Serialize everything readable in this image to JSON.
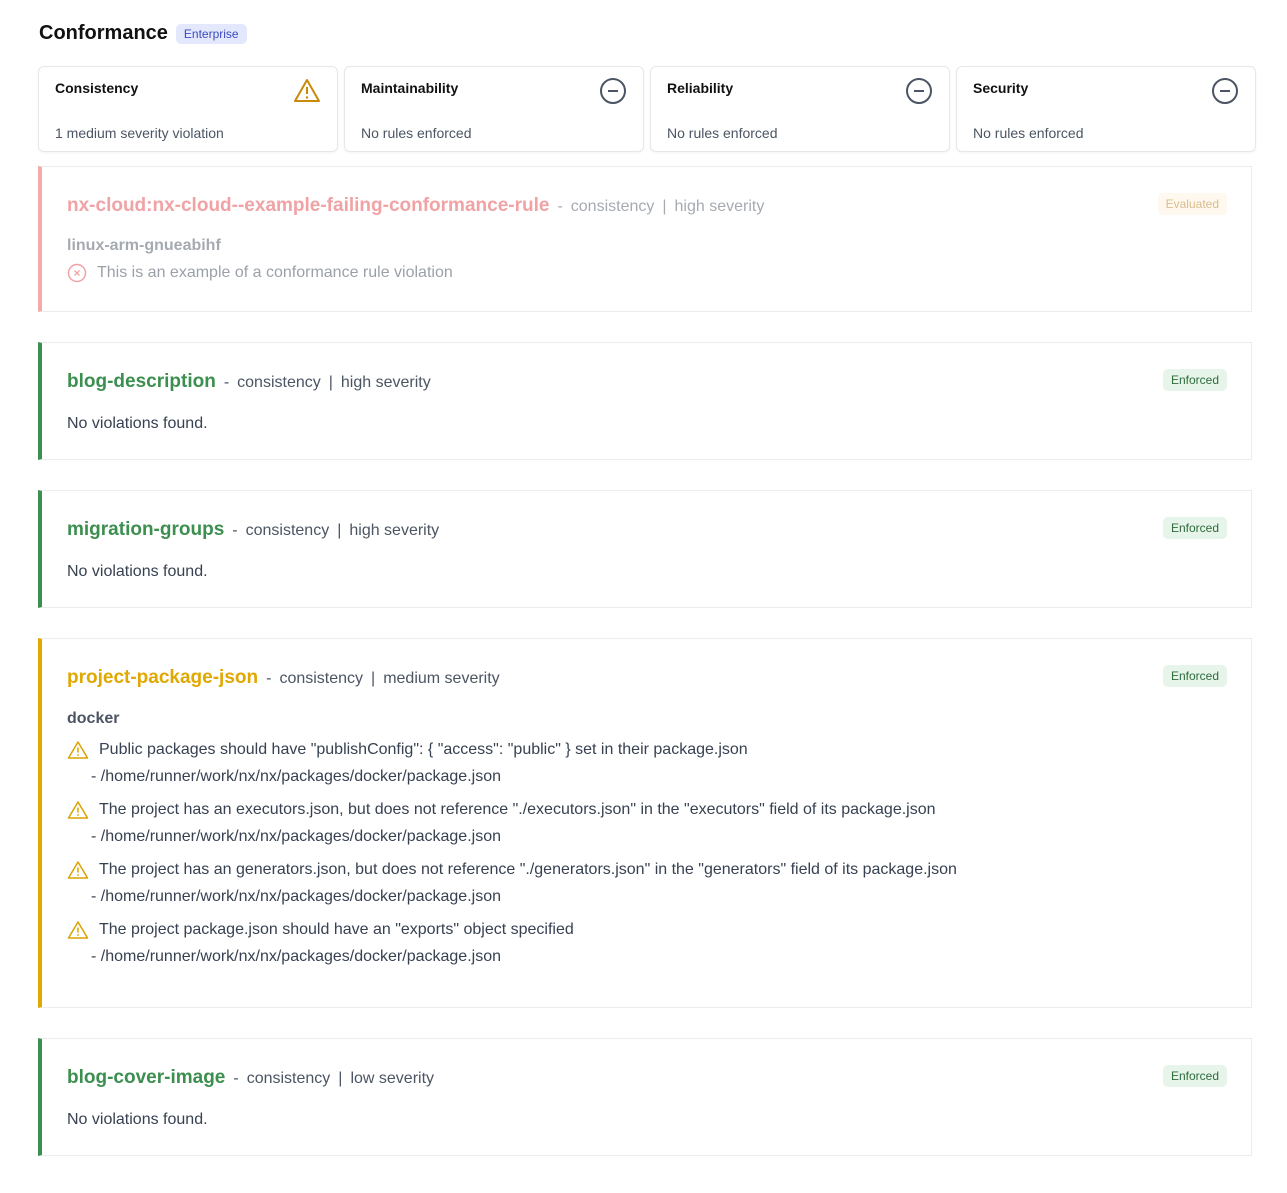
{
  "header": {
    "title": "Conformance",
    "badge": "Enterprise"
  },
  "cards": [
    {
      "title": "Consistency",
      "status": "1 medium severity violation",
      "icon": "warning-icon"
    },
    {
      "title": "Maintainability",
      "status": "No rules enforced",
      "icon": "minus-circle-icon"
    },
    {
      "title": "Reliability",
      "status": "No rules enforced",
      "icon": "minus-circle-icon"
    },
    {
      "title": "Security",
      "status": "No rules enforced",
      "icon": "minus-circle-icon"
    }
  ],
  "rules": [
    {
      "name": "nx-cloud:nx-cloud--example-failing-conformance-rule",
      "category": "consistency",
      "severity": "high severity",
      "tag": "Evaluated",
      "project": "linux-arm-gnueabihf",
      "violation": "This is an example of a conformance rule violation",
      "color": "#e0454a"
    },
    {
      "name": "blog-description",
      "category": "consistency",
      "severity": "high severity",
      "tag": "Enforced",
      "message": "No violations found.",
      "color": "#3c8f4f"
    },
    {
      "name": "migration-groups",
      "category": "consistency",
      "severity": "high severity",
      "tag": "Enforced",
      "message": "No violations found.",
      "color": "#3c8f4f"
    },
    {
      "name": "project-package-json",
      "category": "consistency",
      "severity": "medium severity",
      "tag": "Enforced",
      "project": "docker",
      "color": "#e0a800",
      "violations": [
        {
          "text": "Public packages should have \"publishConfig\": { \"access\": \"public\" } set in their package.json",
          "path": "- /home/runner/work/nx/nx/packages/docker/package.json"
        },
        {
          "text": "The project has an executors.json, but does not reference \"./executors.json\" in the \"executors\" field of its package.json",
          "path": "- /home/runner/work/nx/nx/packages/docker/package.json"
        },
        {
          "text": "The project has an generators.json, but does not reference \"./generators.json\" in the \"generators\" field of its package.json",
          "path": "- /home/runner/work/nx/nx/packages/docker/package.json"
        },
        {
          "text": "The project package.json should have an \"exports\" object specified",
          "path": "- /home/runner/work/nx/nx/packages/docker/package.json"
        }
      ]
    },
    {
      "name": "blog-cover-image",
      "category": "consistency",
      "severity": "low severity",
      "tag": "Enforced",
      "message": "No violations found.",
      "color": "#3c8f4f"
    }
  ],
  "separators": {
    "dash": "-",
    "pipe": "|"
  }
}
